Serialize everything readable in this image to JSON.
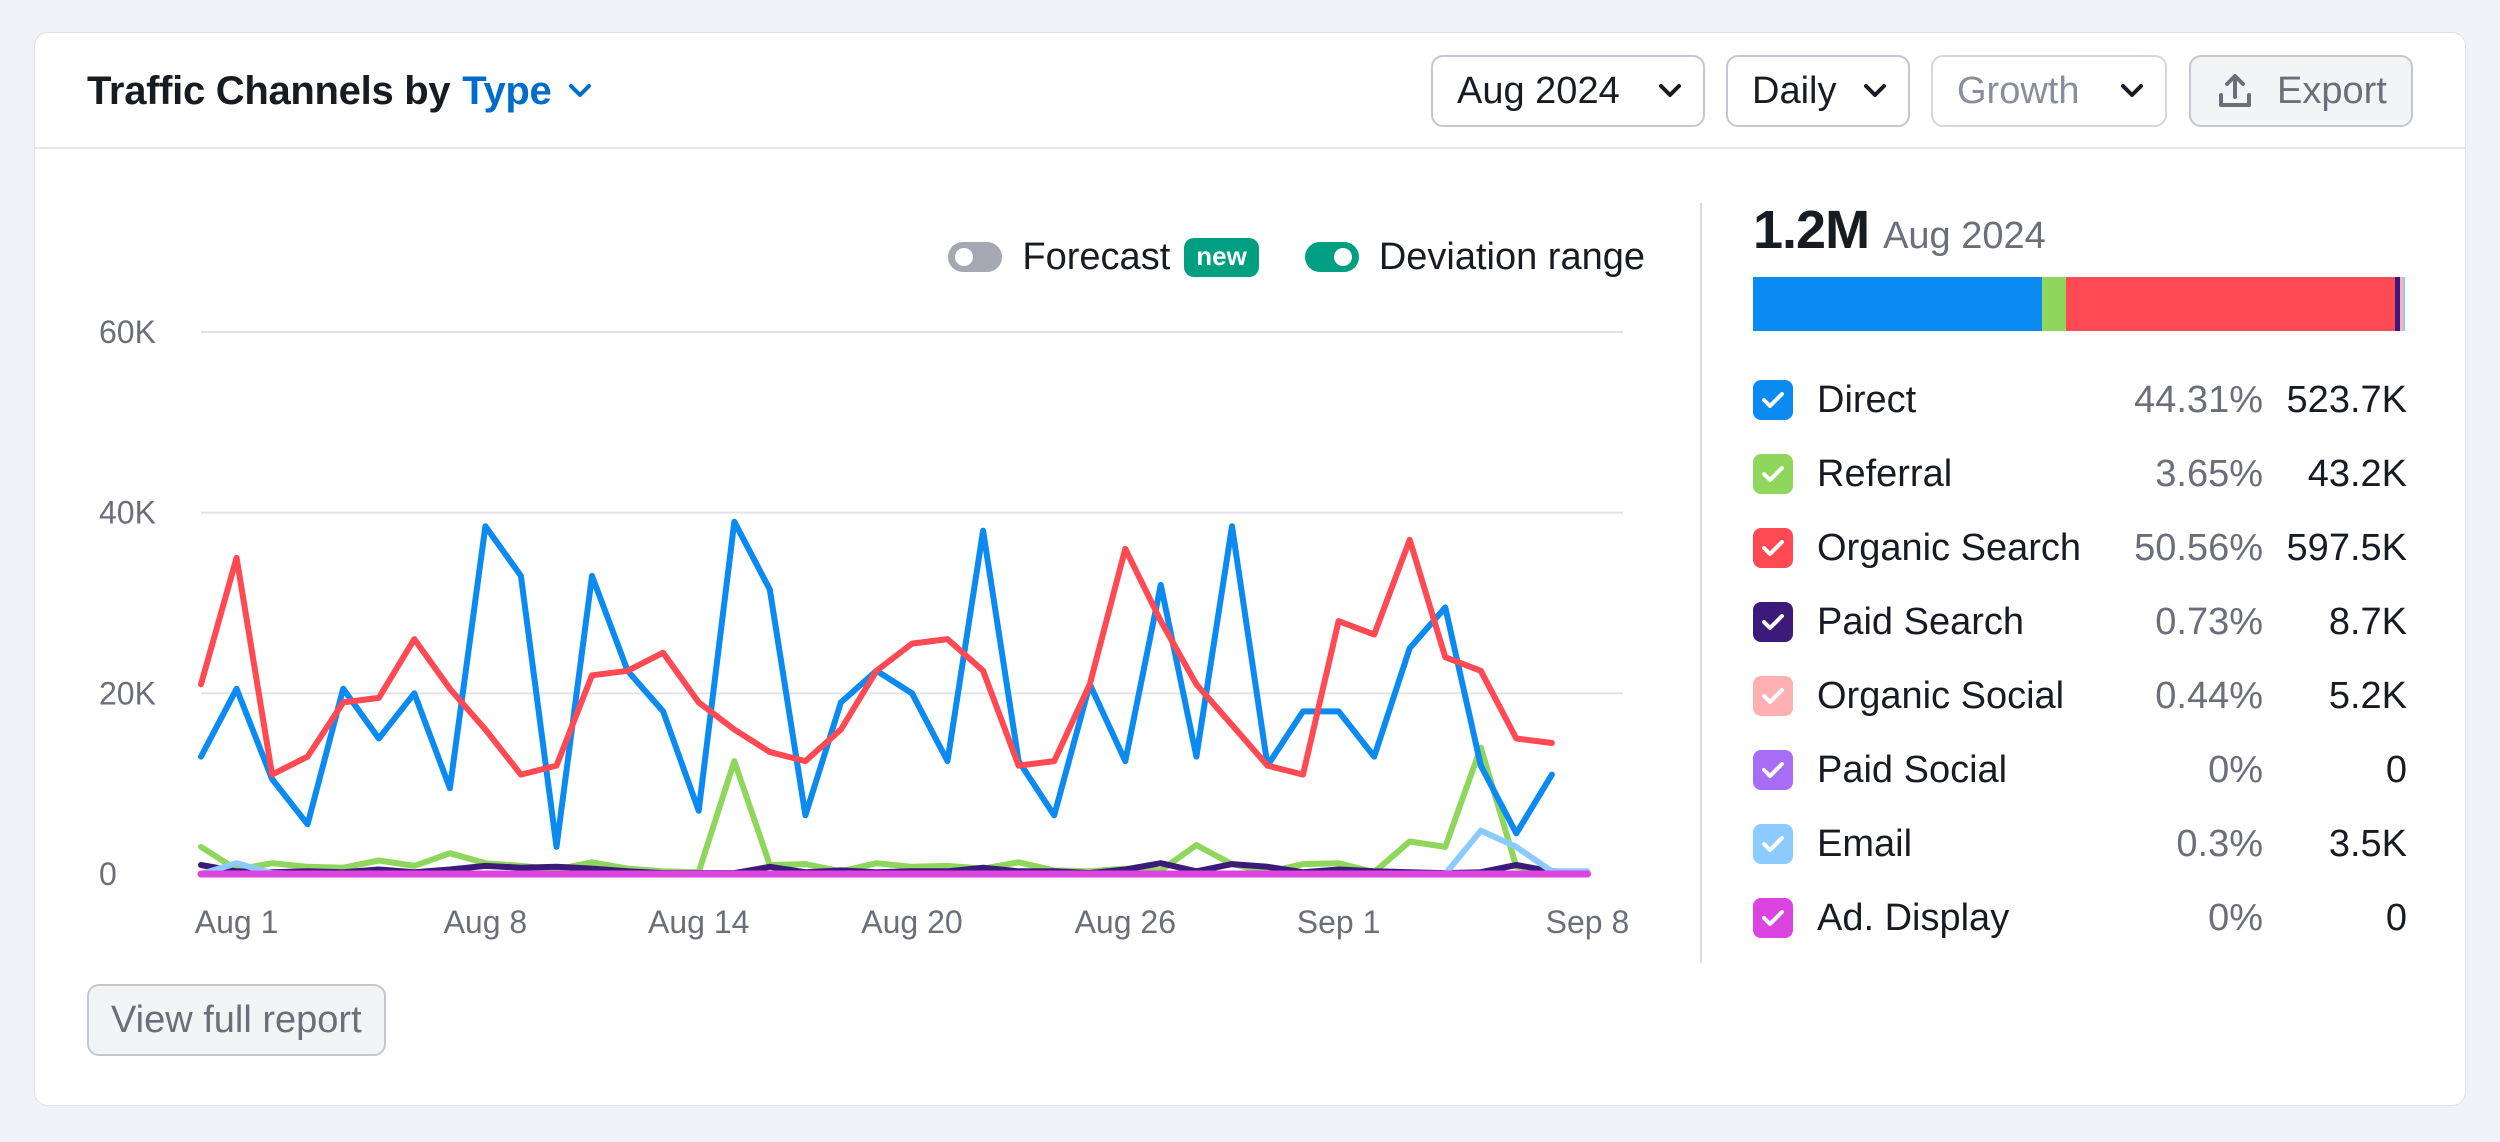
{
  "header": {
    "title_prefix": "Traffic Channels by",
    "title_type": "Type",
    "date_select": "Aug 2024",
    "granularity_select": "Daily",
    "metric_select": "Growth",
    "export_label": "Export"
  },
  "toggles": {
    "forecast_label": "Forecast",
    "forecast_badge": "new",
    "forecast_on": false,
    "deviation_label": "Deviation range",
    "deviation_on": true
  },
  "summary": {
    "total": "1.2M",
    "period": "Aug 2024"
  },
  "channels": [
    {
      "name": "Direct",
      "pct": "44.31%",
      "value": "523.7K",
      "share": 44.31,
      "color": "#0b8bf2"
    },
    {
      "name": "Referral",
      "pct": "3.65%",
      "value": "43.2K",
      "share": 3.65,
      "color": "#8fd65c"
    },
    {
      "name": "Organic Search",
      "pct": "50.56%",
      "value": "597.5K",
      "share": 50.56,
      "color": "#ff4953"
    },
    {
      "name": "Paid Search",
      "pct": "0.73%",
      "value": "8.7K",
      "share": 0.73,
      "color": "#3c1a7a"
    },
    {
      "name": "Organic Social",
      "pct": "0.44%",
      "value": "5.2K",
      "share": 0.44,
      "color": "#ffb0b3"
    },
    {
      "name": "Paid Social",
      "pct": "0%",
      "value": "0",
      "share": 0,
      "color": "#a86cf5"
    },
    {
      "name": "Email",
      "pct": "0.3%",
      "value": "3.5K",
      "share": 0.3,
      "color": "#8ccbff"
    },
    {
      "name": "Ad. Display",
      "pct": "0%",
      "value": "0",
      "share": 0,
      "color": "#dc44e0"
    }
  ],
  "footer": {
    "view_report_label": "View full report"
  },
  "chart_data": {
    "type": "line",
    "x": [
      "Jul 31",
      "Aug 1",
      "Aug 2",
      "Aug 3",
      "Aug 4",
      "Aug 5",
      "Aug 6",
      "Aug 7",
      "Aug 8",
      "Aug 9",
      "Aug 10",
      "Aug 11",
      "Aug 12",
      "Aug 13",
      "Aug 14",
      "Aug 15",
      "Aug 16",
      "Aug 17",
      "Aug 18",
      "Aug 19",
      "Aug 20",
      "Aug 21",
      "Aug 22",
      "Aug 23",
      "Aug 24",
      "Aug 25",
      "Aug 26",
      "Aug 27",
      "Aug 28",
      "Aug 29",
      "Aug 30",
      "Aug 31",
      "Sep 1",
      "Sep 2",
      "Sep 3",
      "Sep 4",
      "Sep 5",
      "Sep 6",
      "Sep 7",
      "Sep 8",
      "Sep 9"
    ],
    "x_ticks": [
      "Aug 1",
      "Aug 8",
      "Aug 14",
      "Aug 20",
      "Aug 26",
      "Sep 1",
      "Sep 8"
    ],
    "y_ticks": [
      "0",
      "20K",
      "40K",
      "60K"
    ],
    "ylim": [
      0,
      60000
    ],
    "grid": true,
    "series": [
      {
        "name": "Referral",
        "color": "#8fd65c",
        "values": [
          3000,
          500,
          1200,
          800,
          700,
          1500,
          900,
          2300,
          1200,
          900,
          500,
          1300,
          600,
          300,
          200,
          12500,
          1000,
          1100,
          300,
          1200,
          800,
          900,
          600,
          1300,
          400,
          300,
          600,
          400,
          3200,
          1100,
          200,
          1100,
          1200,
          200,
          3600,
          3000,
          14000,
          800,
          300,
          200,
          100
        ]
      },
      {
        "name": "Paid Search",
        "color": "#3c1a7a",
        "values": [
          1000,
          300,
          200,
          300,
          200,
          500,
          200,
          500,
          900,
          700,
          800,
          600,
          300,
          100,
          100,
          100,
          800,
          200,
          400,
          200,
          300,
          300,
          700,
          300,
          300,
          100,
          500,
          1200,
          300,
          1100,
          800,
          200,
          500,
          300,
          200,
          100,
          200,
          1000,
          300,
          200,
          100
        ]
      },
      {
        "name": "Email",
        "color": "#8ccbff",
        "values": [
          0,
          1200,
          100,
          0,
          0,
          0,
          0,
          0,
          0,
          0,
          0,
          0,
          0,
          0,
          0,
          0,
          0,
          0,
          0,
          0,
          0,
          0,
          0,
          0,
          0,
          0,
          0,
          0,
          0,
          0,
          0,
          0,
          0,
          0,
          0,
          0,
          4800,
          3000,
          300,
          300,
          200
        ]
      },
      {
        "name": "Direct",
        "color": "#0b8bf2",
        "values": [
          13000,
          20500,
          10500,
          5500,
          20500,
          15000,
          20000,
          9500,
          38500,
          33000,
          3000,
          33000,
          22500,
          18000,
          7000,
          39000,
          31500,
          6500,
          19000,
          22500,
          20000,
          12500,
          38000,
          12500,
          6500,
          21000,
          12500,
          32000,
          13000,
          38500,
          12000,
          18000,
          18000,
          13000,
          25000,
          29500,
          12000,
          4500,
          11000,
          0,
          0
        ]
      },
      {
        "name": "Organic Search",
        "color": "#ff4953",
        "values": [
          21000,
          35000,
          11000,
          13000,
          19000,
          19500,
          26000,
          20500,
          16000,
          11000,
          12000,
          22000,
          22500,
          24500,
          19000,
          16000,
          13500,
          12500,
          16000,
          22500,
          25500,
          26000,
          22500,
          12000,
          12500,
          21000,
          36000,
          28000,
          21000,
          16500,
          12000,
          11000,
          28000,
          26500,
          37000,
          24000,
          22500,
          15000,
          14500,
          0,
          0
        ]
      },
      {
        "name": "Ad. Display",
        "color": "#dc44e0",
        "values": [
          0,
          0,
          0,
          0,
          0,
          0,
          0,
          0,
          0,
          0,
          0,
          0,
          0,
          0,
          0,
          0,
          0,
          0,
          0,
          0,
          0,
          0,
          0,
          0,
          0,
          0,
          0,
          0,
          0,
          0,
          0,
          0,
          0,
          0,
          0,
          0,
          0,
          0,
          0,
          0,
          0
        ]
      }
    ]
  },
  "icons": {
    "chevron": "chevron-down-icon",
    "export": "upload-icon",
    "check": "check-icon"
  }
}
